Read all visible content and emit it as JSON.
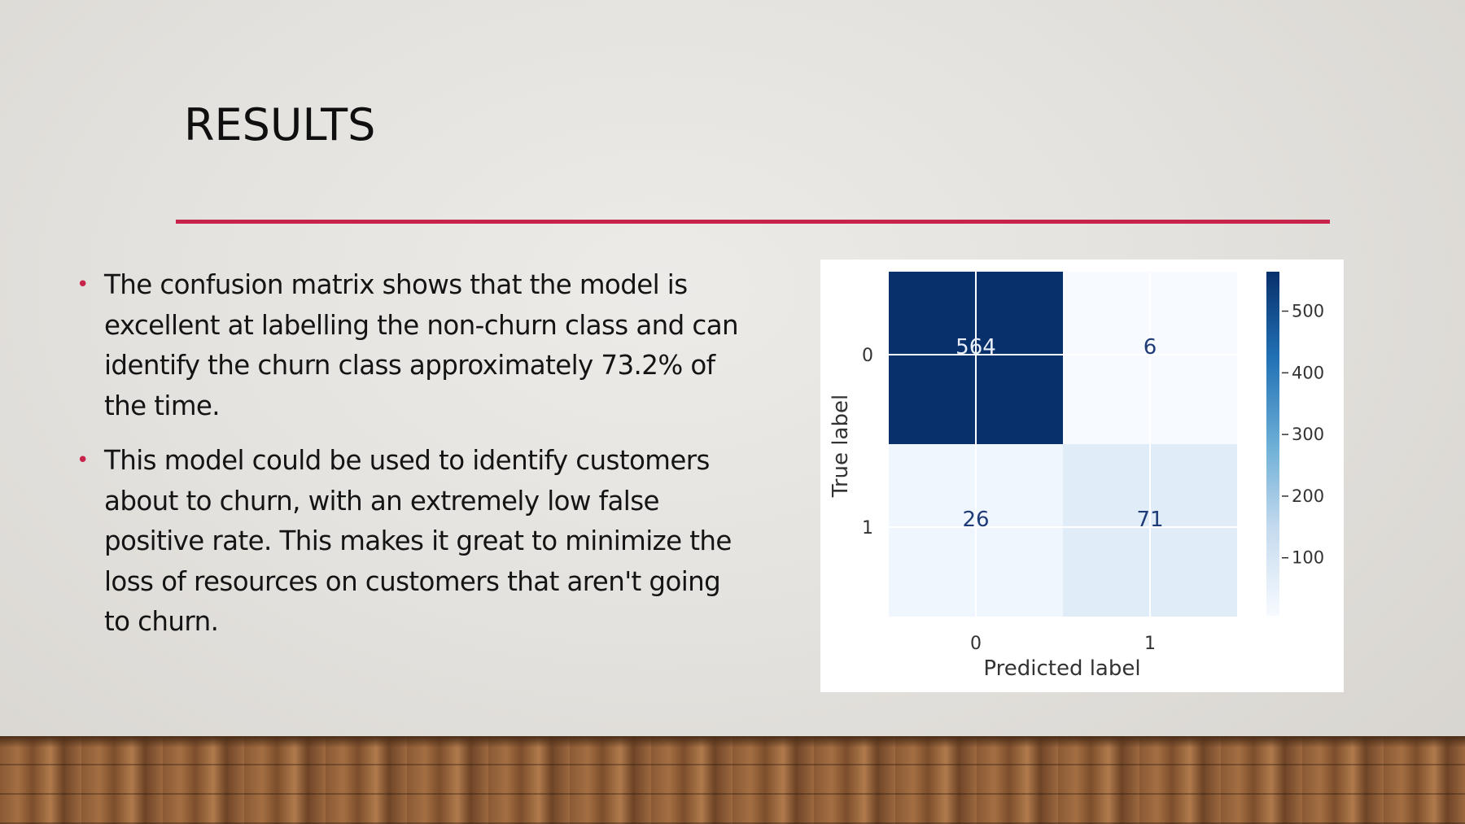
{
  "slide": {
    "title": "RESULTS",
    "accent_color": "#c8234a",
    "bullets": [
      "The confusion matrix shows that the model is excellent at labelling the non-churn class and can identify the churn class approximately 73.2% of the time.",
      "This model could be used to identify customers about to churn, with an extremely low false positive rate. This makes it great to minimize the loss of resources on customers that aren't going to churn."
    ]
  },
  "chart_data": {
    "type": "heatmap",
    "title": "",
    "xlabel": "Predicted label",
    "ylabel": "True label",
    "x_categories": [
      "0",
      "1"
    ],
    "y_categories": [
      "0",
      "1"
    ],
    "values": [
      [
        564,
        6
      ],
      [
        26,
        71
      ]
    ],
    "colormap": "Blues",
    "color_range": [
      6,
      564
    ],
    "colorbar_ticks": [
      100,
      200,
      300,
      400,
      500
    ],
    "grid": true,
    "colors": {
      "low": "#f7fbff",
      "mid": "#6baed6",
      "high": "#08306b"
    }
  }
}
